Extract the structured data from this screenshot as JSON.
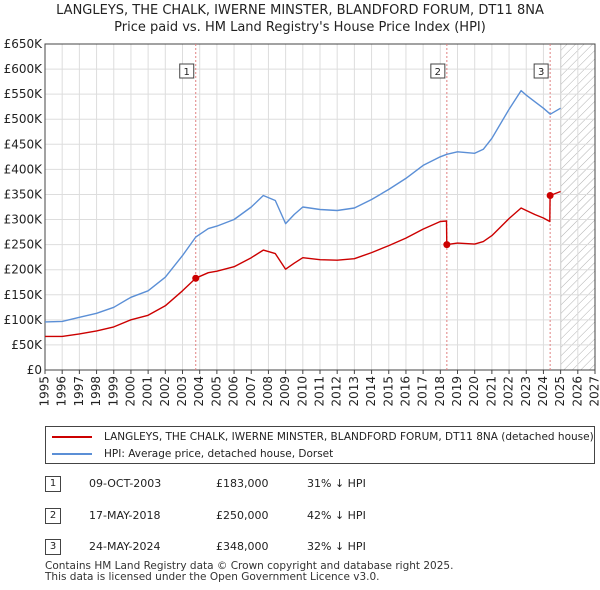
{
  "header": {
    "title": "LANGLEYS, THE CHALK, IWERNE MINSTER, BLANDFORD FORUM, DT11 8NA",
    "subtitle": "Price paid vs. HM Land Registry's House Price Index (HPI)"
  },
  "legend": {
    "property_label": "LANGLEYS, THE CHALK, IWERNE MINSTER, BLANDFORD FORUM, DT11 8NA (detached house)",
    "hpi_label": "HPI: Average price, detached house, Dorset"
  },
  "transactions": [
    {
      "num": "1",
      "date": "09-OCT-2003",
      "price": "£183,000",
      "pct": "31% ↓ HPI"
    },
    {
      "num": "2",
      "date": "17-MAY-2018",
      "price": "£250,000",
      "pct": "42% ↓ HPI"
    },
    {
      "num": "3",
      "date": "24-MAY-2024",
      "price": "£348,000",
      "pct": "32% ↓ HPI"
    }
  ],
  "footer": {
    "line1": "Contains HM Land Registry data © Crown copyright and database right 2025.",
    "line2": "This data is licensed under the Open Government Licence v3.0."
  },
  "colors": {
    "property": "#cc0000",
    "hpi": "#5b8fd6",
    "marker_line": "#e08080",
    "grid": "#dddddd",
    "hatch": "#b0b0b0"
  },
  "chart_data": {
    "type": "line",
    "xlim": [
      1995,
      2027
    ],
    "ylim": [
      0,
      650000
    ],
    "x_ticks": [
      "1995",
      "1996",
      "1997",
      "1998",
      "1999",
      "2000",
      "2001",
      "2002",
      "2003",
      "2004",
      "2005",
      "2006",
      "2007",
      "2008",
      "2009",
      "2010",
      "2011",
      "2012",
      "2013",
      "2014",
      "2015",
      "2016",
      "2017",
      "2018",
      "2019",
      "2020",
      "2021",
      "2022",
      "2023",
      "2024",
      "2025",
      "2026",
      "2027"
    ],
    "y_ticks": [
      {
        "value": 0,
        "label": "£0"
      },
      {
        "value": 50000,
        "label": "£50K"
      },
      {
        "value": 100000,
        "label": "£100K"
      },
      {
        "value": 150000,
        "label": "£150K"
      },
      {
        "value": 200000,
        "label": "£200K"
      },
      {
        "value": 250000,
        "label": "£250K"
      },
      {
        "value": 300000,
        "label": "£300K"
      },
      {
        "value": 350000,
        "label": "£350K"
      },
      {
        "value": 400000,
        "label": "£400K"
      },
      {
        "value": 450000,
        "label": "£450K"
      },
      {
        "value": 500000,
        "label": "£500K"
      },
      {
        "value": 550000,
        "label": "£550K"
      },
      {
        "value": 600000,
        "label": "£600K"
      },
      {
        "value": 650000,
        "label": "£650K"
      }
    ],
    "forecast_start": 2025.0,
    "series": [
      {
        "name": "HPI: Average price, detached house, Dorset",
        "points": [
          [
            1995.0,
            96000
          ],
          [
            1996.0,
            97000
          ],
          [
            1997.0,
            105000
          ],
          [
            1998.0,
            113000
          ],
          [
            1999.0,
            125000
          ],
          [
            2000.0,
            145000
          ],
          [
            2001.0,
            158000
          ],
          [
            2002.0,
            185000
          ],
          [
            2003.0,
            228000
          ],
          [
            2003.77,
            265000
          ],
          [
            2004.5,
            282000
          ],
          [
            2005.0,
            287000
          ],
          [
            2006.0,
            300000
          ],
          [
            2007.0,
            325000
          ],
          [
            2007.7,
            348000
          ],
          [
            2008.4,
            338000
          ],
          [
            2009.0,
            292000
          ],
          [
            2009.5,
            310000
          ],
          [
            2010.0,
            325000
          ],
          [
            2011.0,
            320000
          ],
          [
            2012.0,
            318000
          ],
          [
            2013.0,
            323000
          ],
          [
            2014.0,
            340000
          ],
          [
            2015.0,
            360000
          ],
          [
            2016.0,
            382000
          ],
          [
            2017.0,
            408000
          ],
          [
            2018.0,
            425000
          ],
          [
            2018.38,
            430000
          ],
          [
            2019.0,
            435000
          ],
          [
            2020.0,
            432000
          ],
          [
            2020.5,
            440000
          ],
          [
            2021.0,
            462000
          ],
          [
            2022.0,
            520000
          ],
          [
            2022.7,
            557000
          ],
          [
            2023.0,
            548000
          ],
          [
            2023.5,
            535000
          ],
          [
            2024.0,
            522000
          ],
          [
            2024.4,
            510000
          ],
          [
            2025.0,
            522000
          ]
        ]
      },
      {
        "name": "LANGLEYS, THE CHALK, IWERNE MINSTER, BLANDFORD FORUM, DT11 8NA (detached house)",
        "points": [
          [
            1995.0,
            67000
          ],
          [
            1996.0,
            67000
          ],
          [
            1997.0,
            72000
          ],
          [
            1998.0,
            78000
          ],
          [
            1999.0,
            86000
          ],
          [
            2000.0,
            100000
          ],
          [
            2001.0,
            109000
          ],
          [
            2002.0,
            128000
          ],
          [
            2003.0,
            158000
          ],
          [
            2003.77,
            183000
          ],
          [
            2004.5,
            194000
          ],
          [
            2005.0,
            197000
          ],
          [
            2006.0,
            206000
          ],
          [
            2007.0,
            224000
          ],
          [
            2007.7,
            239000
          ],
          [
            2008.4,
            232000
          ],
          [
            2009.0,
            201000
          ],
          [
            2009.5,
            213000
          ],
          [
            2010.0,
            224000
          ],
          [
            2011.0,
            220000
          ],
          [
            2012.0,
            219000
          ],
          [
            2013.0,
            222000
          ],
          [
            2014.0,
            234000
          ],
          [
            2015.0,
            248000
          ],
          [
            2016.0,
            263000
          ],
          [
            2017.0,
            281000
          ],
          [
            2018.0,
            296000
          ],
          [
            2018.36,
            297000
          ],
          [
            2018.38,
            250000
          ],
          [
            2019.0,
            253000
          ],
          [
            2020.0,
            251000
          ],
          [
            2020.5,
            256000
          ],
          [
            2021.0,
            268000
          ],
          [
            2022.0,
            302000
          ],
          [
            2022.7,
            323000
          ],
          [
            2023.0,
            318000
          ],
          [
            2023.5,
            310000
          ],
          [
            2024.0,
            303000
          ],
          [
            2024.37,
            296000
          ],
          [
            2024.39,
            348000
          ],
          [
            2025.0,
            356000
          ]
        ]
      }
    ],
    "markers": [
      {
        "label": "1",
        "x": 2003.77,
        "y": 183000
      },
      {
        "label": "2",
        "x": 2018.38,
        "y": 250000
      },
      {
        "label": "3",
        "x": 2024.39,
        "y": 348000
      }
    ]
  }
}
